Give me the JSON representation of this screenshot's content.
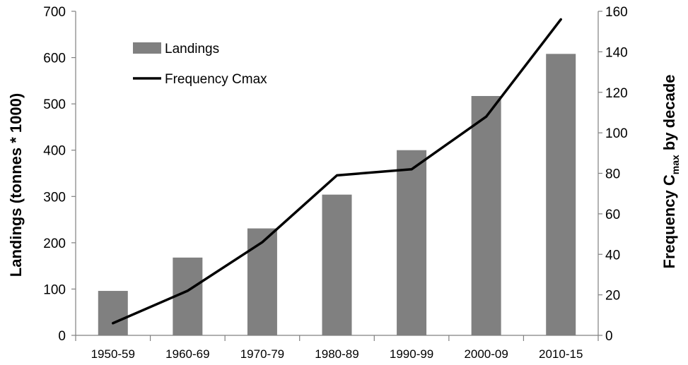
{
  "chart_data": {
    "type": "bar",
    "categories": [
      "1950-59",
      "1960-69",
      "1970-79",
      "1980-89",
      "1990-99",
      "2000-09",
      "2010-15"
    ],
    "series": [
      {
        "name": "Landings",
        "type": "bar",
        "axis": "left",
        "values": [
          96,
          168,
          231,
          304,
          400,
          517,
          608
        ],
        "color": "#808080"
      },
      {
        "name": "Frequency Cmax",
        "type": "line",
        "axis": "right",
        "values": [
          6,
          22,
          46,
          79,
          82,
          108,
          156
        ],
        "color": "#000000"
      }
    ],
    "ylabel": "Landings (tonnes * 1000)",
    "y2label": {
      "prefix": "Frequency C",
      "subscript": "max",
      "suffix": " by decade"
    },
    "ylim": [
      0,
      700
    ],
    "y2lim": [
      0,
      160
    ],
    "yticks": [
      "0",
      "100",
      "200",
      "300",
      "400",
      "500",
      "600",
      "700"
    ],
    "y2ticks": [
      "0",
      "20",
      "40",
      "60",
      "80",
      "100",
      "120",
      "140",
      "160"
    ],
    "grid": false,
    "legend_position": "top-left"
  }
}
